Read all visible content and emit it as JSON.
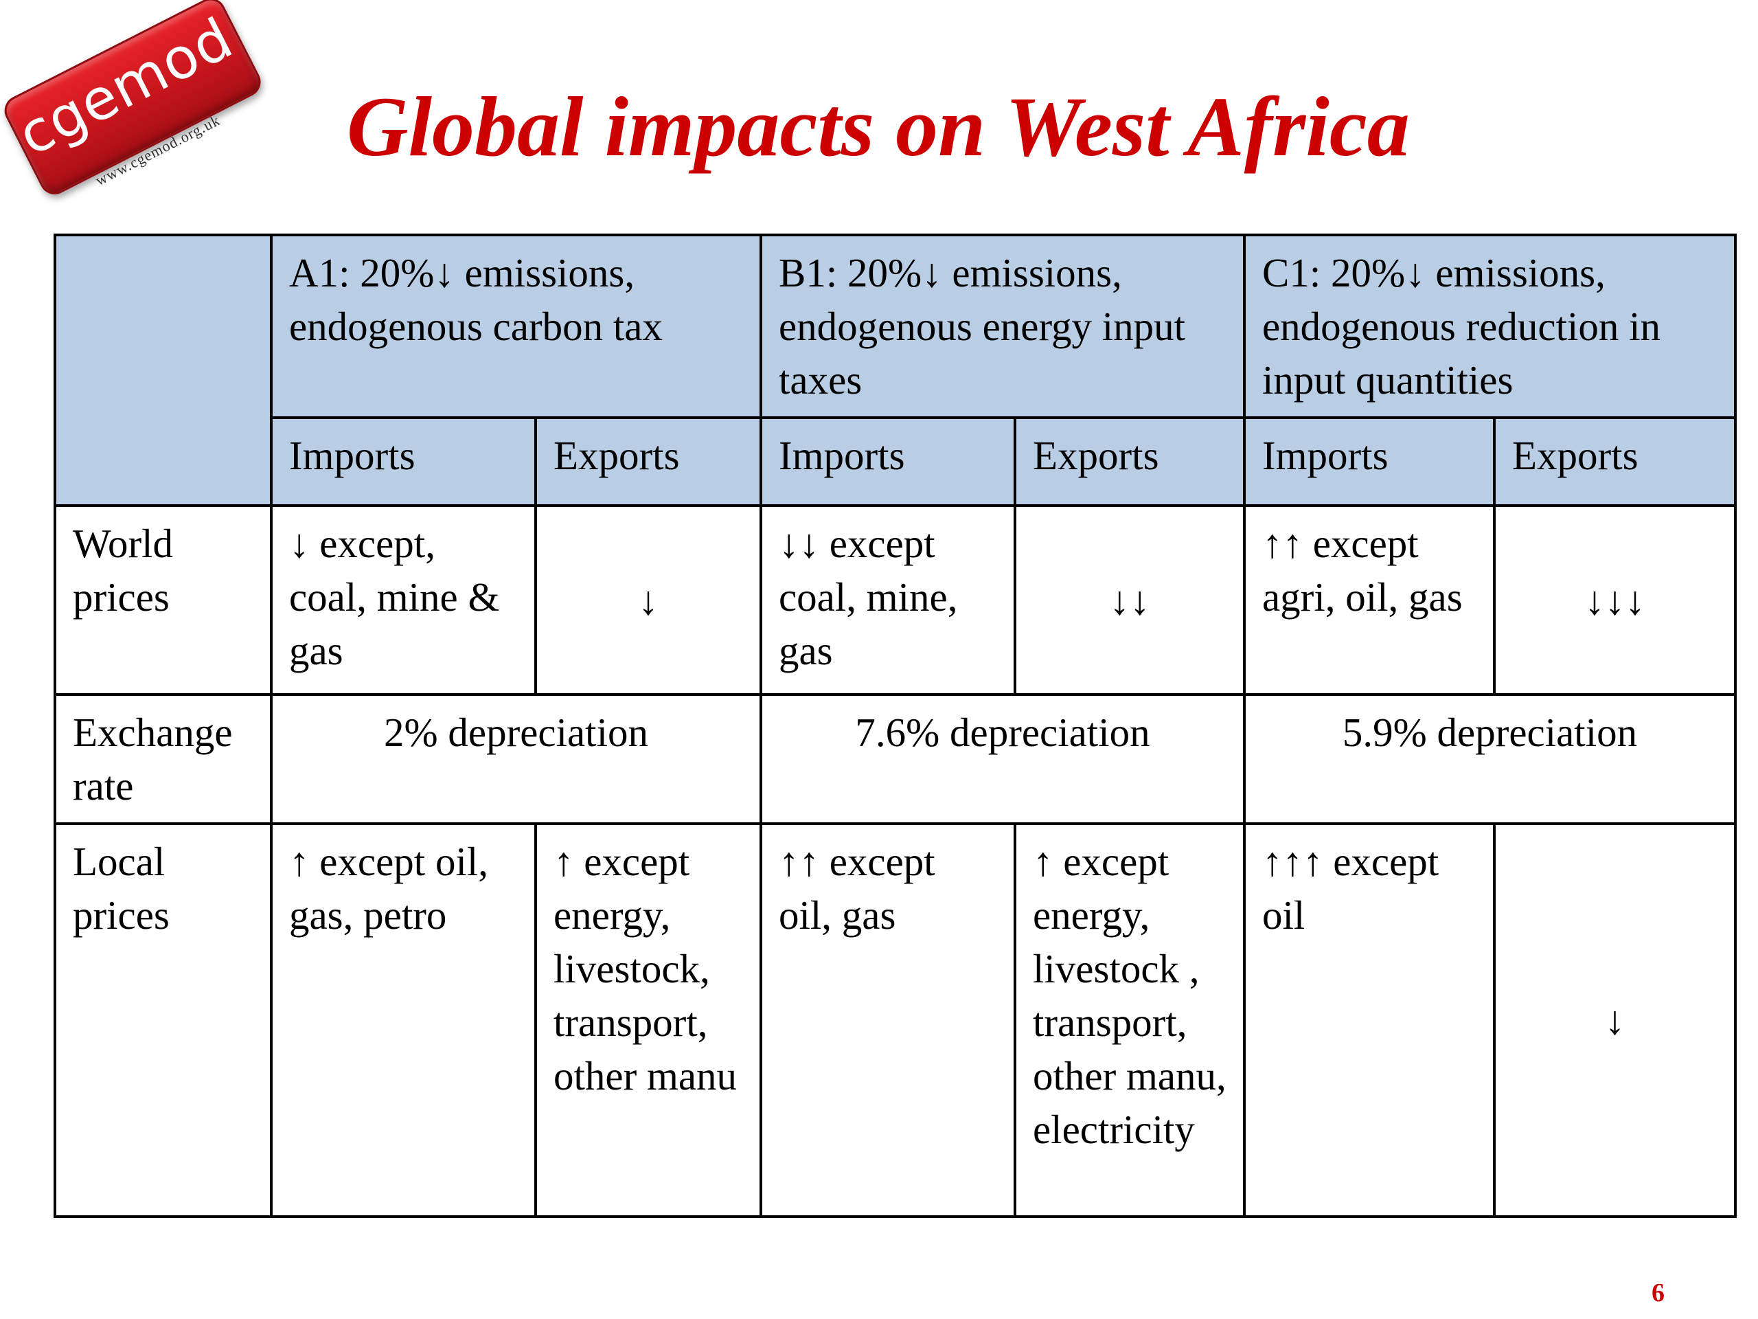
{
  "logo": {
    "name": "cgemod",
    "url": "www.cgemod.org.uk"
  },
  "title": "Global impacts on West Africa",
  "table": {
    "scenarios": [
      {
        "label": "A1: 20%↓ emissions, endogenous carbon tax"
      },
      {
        "label": "B1: 20%↓ emissions, endogenous energy input taxes"
      },
      {
        "label": "C1: 20%↓ emissions, endogenous reduction in input quantities"
      }
    ],
    "subheaders": {
      "imports": "Imports",
      "exports": "Exports"
    },
    "rows": {
      "world_prices": {
        "label": "World prices",
        "a1_imports": "↓ except, coal, mine & gas",
        "a1_exports": "↓",
        "b1_imports": "↓↓ except coal, mine, gas",
        "b1_exports": "↓↓",
        "c1_imports": "↑↑ except agri, oil, gas",
        "c1_exports": "↓↓↓"
      },
      "exchange_rate": {
        "label": "Exchange rate",
        "a1": "2% depreciation",
        "b1": "7.6% depreciation",
        "c1": "5.9% depreciation"
      },
      "local_prices": {
        "label": "Local prices",
        "a1_imports": "↑ except oil, gas, petro",
        "a1_exports": "↑ except energy, livestock, transport, other manu",
        "b1_imports": "↑↑ except oil, gas",
        "b1_exports": "↑ except energy, livestock , transport, other manu, electricity",
        "c1_imports": "↑↑↑ except oil",
        "c1_exports": "↓"
      }
    }
  },
  "page_number": "6",
  "colors": {
    "title": "#cc0000",
    "header_fill": "#b9cde4",
    "logo_red": "#d11a21"
  }
}
